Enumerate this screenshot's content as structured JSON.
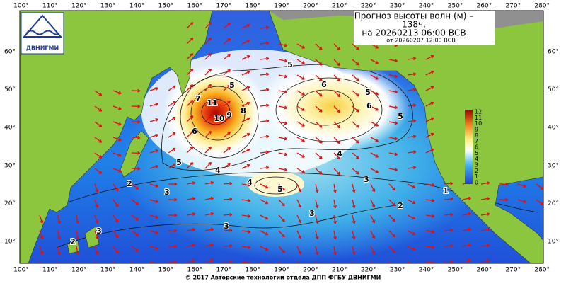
{
  "header": {
    "title": "Прогноз высоты волн (м) –",
    "title_cont": "138ч.",
    "forecast_time": "на 20260213 06:00 ВСВ",
    "base_time": "от 20260207 12:00 ВСВ"
  },
  "logo": "ДВНИГМИ",
  "longitudes": [
    "100°",
    "110°",
    "120°",
    "130°",
    "140°",
    "150°",
    "160°",
    "170°",
    "180°",
    "190°",
    "200°",
    "210°",
    "220°",
    "230°",
    "240°",
    "250°",
    "260°",
    "270°",
    "280°"
  ],
  "latitudes": [
    "60°",
    "50°",
    "40°",
    "30°",
    "20°",
    "10°"
  ],
  "colorbar": {
    "ticks": [
      0,
      1,
      2,
      3,
      4,
      5,
      6,
      7,
      8,
      9,
      10,
      11,
      12
    ]
  },
  "contour_labels": [
    11,
    10,
    9,
    8,
    7,
    6,
    5,
    5,
    4,
    6,
    5,
    6,
    5,
    4,
    3,
    4,
    5,
    3,
    2,
    2,
    3,
    3,
    3,
    2,
    1,
    5
  ],
  "footer": "© 2017 Авторские технологии отдела ДПП ФГБУ ДВНИГМИ"
}
